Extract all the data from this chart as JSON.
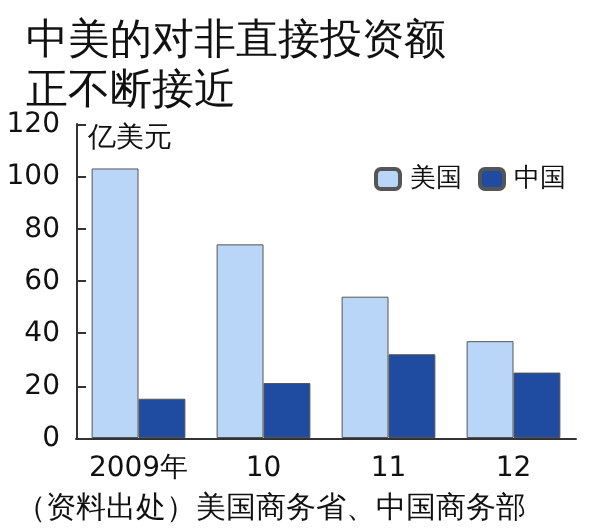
{
  "chart_data": {
    "type": "bar",
    "title": "中美的对非直接投资额正不断接近",
    "ylabel": "亿美元",
    "categories": [
      "2009年",
      "10",
      "11",
      "12"
    ],
    "series": [
      {
        "name": "美国",
        "color": "#b9d5f7",
        "values": [
          103,
          74,
          54,
          37
        ]
      },
      {
        "name": "中国",
        "color": "#1f4ba0",
        "values": [
          15,
          21,
          32,
          25
        ]
      }
    ],
    "ylim": [
      0,
      120
    ],
    "yticks": [
      0,
      20,
      40,
      60,
      80,
      100,
      120
    ],
    "grid": false,
    "legend": "top right",
    "annotations": [
      "（资料出处）美国商务省、中国商务部"
    ]
  }
}
